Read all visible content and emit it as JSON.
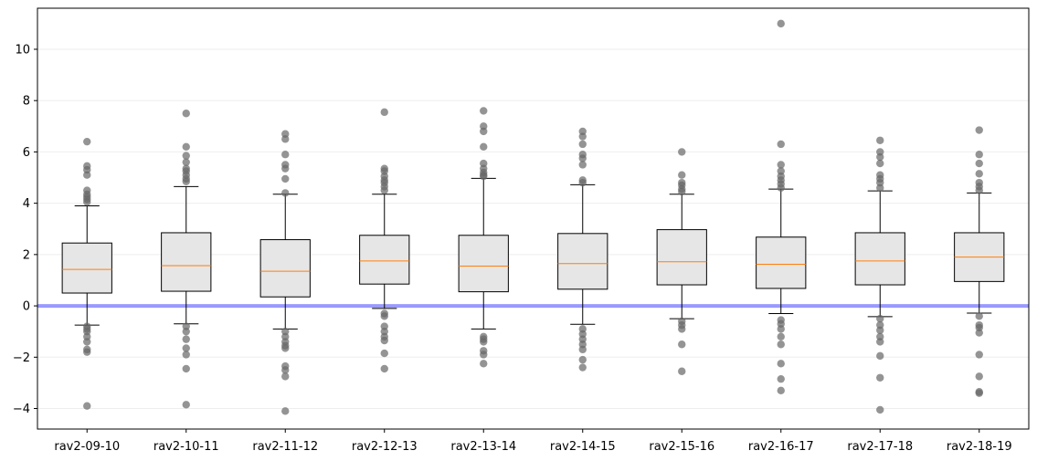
{
  "chart_data": {
    "type": "box",
    "title": "",
    "xlabel": "",
    "ylabel": "",
    "ylim": [
      -4.8,
      11.6
    ],
    "yticks": [
      -4,
      -2,
      0,
      2,
      4,
      6,
      8,
      10
    ],
    "ytick_labels": [
      "−4",
      "−2",
      "0",
      "2",
      "4",
      "6",
      "8",
      "10"
    ],
    "grid": "horizontal",
    "reference_line": {
      "y": 0,
      "color": "#9999ff"
    },
    "colors": {
      "box_fill": "#e6e6e6",
      "median": "#ff7f0e",
      "outlier": "#666666",
      "reference": "#9999ff",
      "grid": "#eeeeee"
    },
    "categories": [
      "rav2-09-10",
      "rav2-10-11",
      "rav2-11-12",
      "rav2-12-13",
      "rav2-13-14",
      "rav2-14-15",
      "rav2-15-16",
      "rav2-16-17",
      "rav2-17-18",
      "rav2-18-19"
    ],
    "boxes": [
      {
        "whisker_low": -0.75,
        "q1": 0.5,
        "median": 1.42,
        "q3": 2.45,
        "whisker_high": 3.9,
        "outliers": [
          6.4,
          5.45,
          5.3,
          5.1,
          4.5,
          4.35,
          4.25,
          4.15,
          4.05,
          -0.8,
          -0.9,
          -1.0,
          -1.2,
          -1.4,
          -1.7,
          -1.8,
          -3.9
        ]
      },
      {
        "whisker_low": -0.7,
        "q1": 0.57,
        "median": 1.57,
        "q3": 2.85,
        "whisker_high": 4.65,
        "outliers": [
          7.5,
          6.2,
          5.85,
          5.6,
          5.35,
          5.25,
          5.1,
          4.95,
          4.85,
          -0.8,
          -1.0,
          -1.3,
          -1.65,
          -1.9,
          -2.45,
          -3.85
        ]
      },
      {
        "whisker_low": -0.9,
        "q1": 0.35,
        "median": 1.35,
        "q3": 2.58,
        "whisker_high": 4.35,
        "outliers": [
          6.7,
          6.5,
          5.9,
          5.5,
          5.35,
          4.95,
          4.4,
          -1.0,
          -1.2,
          -1.4,
          -1.55,
          -1.65,
          -2.35,
          -2.5,
          -2.75,
          -4.1
        ]
      },
      {
        "whisker_low": -0.1,
        "q1": 0.85,
        "median": 1.75,
        "q3": 2.75,
        "whisker_high": 4.35,
        "outliers": [
          7.55,
          5.35,
          5.25,
          5.05,
          4.9,
          4.8,
          4.65,
          4.5,
          -0.3,
          -0.4,
          -0.8,
          -1.0,
          -1.2,
          -1.35,
          -1.85,
          -2.45
        ]
      },
      {
        "whisker_low": -0.9,
        "q1": 0.55,
        "median": 1.55,
        "q3": 2.75,
        "whisker_high": 4.97,
        "outliers": [
          7.6,
          7.0,
          6.8,
          6.2,
          5.55,
          5.35,
          5.2,
          5.1,
          5.05,
          -1.2,
          -1.3,
          -1.4,
          -1.75,
          -1.9,
          -2.25
        ]
      },
      {
        "whisker_low": -0.72,
        "q1": 0.65,
        "median": 1.65,
        "q3": 2.82,
        "whisker_high": 4.72,
        "outliers": [
          6.8,
          6.6,
          6.3,
          5.9,
          5.75,
          5.5,
          4.9,
          4.8,
          -0.9,
          -1.1,
          -1.3,
          -1.5,
          -1.7,
          -2.1,
          -2.4
        ]
      },
      {
        "whisker_low": -0.5,
        "q1": 0.82,
        "median": 1.72,
        "q3": 2.97,
        "whisker_high": 4.35,
        "outliers": [
          6.0,
          5.1,
          4.8,
          4.7,
          4.55,
          4.45,
          -0.6,
          -0.75,
          -0.9,
          -1.5,
          -2.55
        ]
      },
      {
        "whisker_low": -0.3,
        "q1": 0.68,
        "median": 1.62,
        "q3": 2.68,
        "whisker_high": 4.55,
        "outliers": [
          11.0,
          6.3,
          5.5,
          5.25,
          5.05,
          4.9,
          4.75,
          4.6,
          -0.55,
          -0.7,
          -0.9,
          -1.2,
          -1.5,
          -2.25,
          -2.85,
          -3.3
        ]
      },
      {
        "whisker_low": -0.42,
        "q1": 0.82,
        "median": 1.75,
        "q3": 2.85,
        "whisker_high": 4.48,
        "outliers": [
          6.45,
          6.0,
          5.8,
          5.55,
          5.1,
          4.95,
          4.8,
          4.6,
          -0.5,
          -0.75,
          -0.95,
          -1.2,
          -1.4,
          -1.95,
          -2.8,
          -4.05
        ]
      },
      {
        "whisker_low": -0.28,
        "q1": 0.95,
        "median": 1.9,
        "q3": 2.85,
        "whisker_high": 4.4,
        "outliers": [
          6.85,
          5.9,
          5.55,
          5.15,
          4.8,
          4.65,
          4.5,
          -0.4,
          -0.75,
          -0.85,
          -1.05,
          -1.9,
          -2.75,
          -3.35,
          -3.4
        ]
      }
    ]
  }
}
